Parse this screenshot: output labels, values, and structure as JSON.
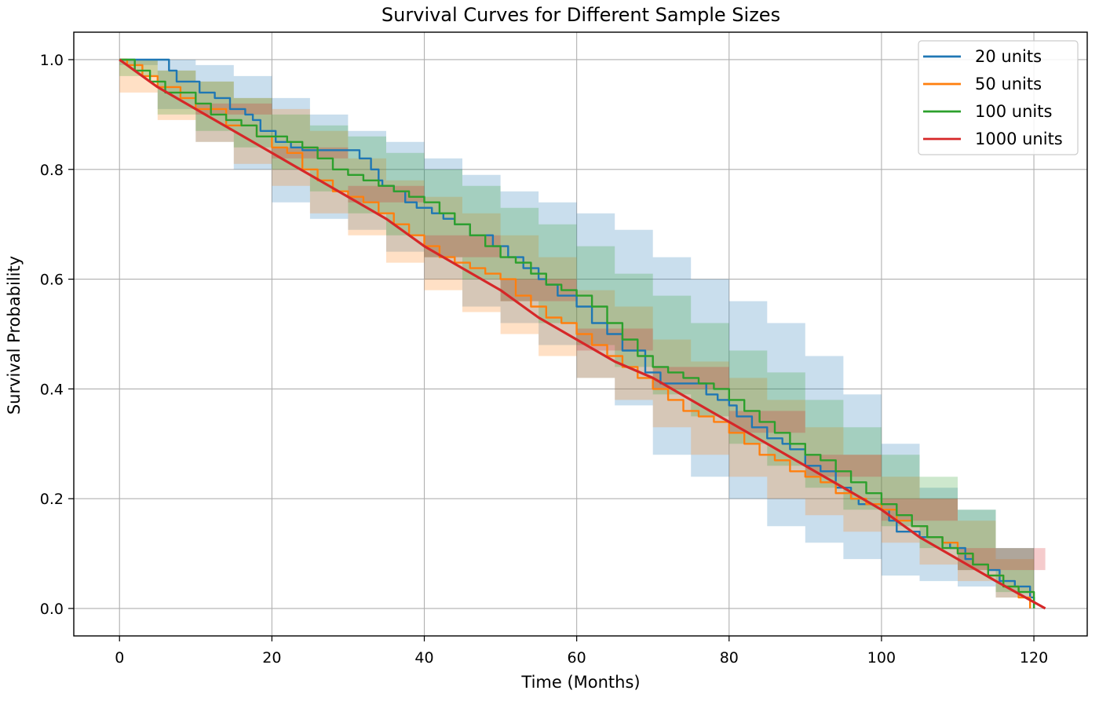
{
  "chart_data": {
    "type": "line",
    "title": "Survival Curves for Different Sample Sizes",
    "xlabel": "Time (Months)",
    "ylabel": "Survival Probability",
    "xlim": [
      -6,
      127
    ],
    "ylim": [
      -0.05,
      1.05
    ],
    "xticks": [
      0,
      20,
      40,
      60,
      80,
      100,
      120
    ],
    "yticks": [
      0.0,
      0.2,
      0.4,
      0.6,
      0.8,
      1.0
    ],
    "xtick_labels": [
      "0",
      "20",
      "40",
      "60",
      "80",
      "100",
      "120"
    ],
    "ytick_labels": [
      "0.0",
      "0.2",
      "0.4",
      "0.6",
      "0.8",
      "1.0"
    ],
    "grid": true,
    "legend_position": "top-right",
    "series": [
      {
        "name": "20 units",
        "color": "#1f77b4",
        "step": true,
        "x": [
          0,
          6.5,
          7.5,
          8.5,
          10.5,
          12.5,
          14.5,
          16.5,
          17.5,
          18.5,
          20.5,
          22.5,
          24,
          31.5,
          33,
          34,
          34.5,
          36,
          37.5,
          39,
          41,
          42.5,
          44,
          46,
          49,
          51,
          53,
          55,
          56,
          57.5,
          60,
          62,
          64,
          66,
          69,
          71,
          75,
          77,
          78.5,
          80,
          81,
          83,
          85,
          87,
          88,
          90,
          92,
          94,
          96,
          97,
          100,
          101,
          102,
          105,
          108,
          109,
          111,
          112,
          114,
          115.5,
          117.5,
          119.5,
          120
        ],
        "y": [
          1.0,
          0.98,
          0.96,
          0.96,
          0.94,
          0.93,
          0.91,
          0.9,
          0.89,
          0.87,
          0.85,
          0.84,
          0.835,
          0.82,
          0.8,
          0.78,
          0.77,
          0.76,
          0.74,
          0.73,
          0.72,
          0.71,
          0.7,
          0.68,
          0.66,
          0.64,
          0.62,
          0.6,
          0.59,
          0.57,
          0.55,
          0.52,
          0.5,
          0.47,
          0.43,
          0.41,
          0.41,
          0.39,
          0.38,
          0.37,
          0.35,
          0.33,
          0.31,
          0.3,
          0.29,
          0.26,
          0.25,
          0.22,
          0.2,
          0.19,
          0.18,
          0.16,
          0.14,
          0.13,
          0.12,
          0.11,
          0.09,
          0.08,
          0.07,
          0.05,
          0.04,
          0.02,
          0.0
        ]
      },
      {
        "name": "50 units",
        "color": "#ff7f0e",
        "step": true,
        "x": [
          0,
          1,
          3,
          5,
          8,
          10,
          14,
          18,
          20,
          22,
          24,
          26,
          28,
          30,
          32,
          34,
          36,
          38,
          40,
          42,
          44,
          46,
          48,
          50,
          52,
          54,
          56,
          58,
          60,
          62,
          64,
          66,
          68,
          70,
          72,
          74,
          76,
          78,
          80,
          82,
          84,
          86,
          88,
          90,
          92,
          94,
          96,
          98,
          100,
          102,
          104,
          106,
          108,
          110,
          112,
          114,
          116,
          118,
          119.5
        ],
        "y": [
          1.0,
          0.99,
          0.97,
          0.95,
          0.93,
          0.91,
          0.88,
          0.86,
          0.84,
          0.83,
          0.8,
          0.78,
          0.76,
          0.75,
          0.74,
          0.72,
          0.7,
          0.68,
          0.66,
          0.64,
          0.63,
          0.62,
          0.61,
          0.6,
          0.57,
          0.55,
          0.53,
          0.52,
          0.5,
          0.48,
          0.46,
          0.44,
          0.42,
          0.4,
          0.38,
          0.36,
          0.35,
          0.34,
          0.32,
          0.3,
          0.28,
          0.27,
          0.25,
          0.24,
          0.23,
          0.21,
          0.2,
          0.19,
          0.18,
          0.16,
          0.15,
          0.13,
          0.12,
          0.1,
          0.08,
          0.06,
          0.04,
          0.02,
          0.0
        ]
      },
      {
        "name": "100 units",
        "color": "#2ca02c",
        "step": true,
        "x": [
          0,
          2,
          4,
          6,
          8,
          10,
          12,
          14,
          16,
          18,
          20,
          22,
          24,
          26,
          28,
          30,
          32,
          34,
          36,
          38,
          40,
          42,
          44,
          46,
          48,
          50,
          52,
          54,
          56,
          58,
          60,
          62,
          64,
          66,
          68,
          70,
          72,
          74,
          76,
          78,
          80,
          82,
          84,
          86,
          88,
          90,
          92,
          94,
          96,
          98,
          100,
          102,
          104,
          106,
          108,
          110,
          112,
          114,
          116,
          118,
          120
        ],
        "y": [
          1.0,
          0.98,
          0.96,
          0.94,
          0.94,
          0.92,
          0.9,
          0.89,
          0.88,
          0.86,
          0.86,
          0.85,
          0.84,
          0.82,
          0.8,
          0.79,
          0.78,
          0.77,
          0.76,
          0.75,
          0.74,
          0.72,
          0.7,
          0.68,
          0.66,
          0.64,
          0.63,
          0.61,
          0.59,
          0.58,
          0.57,
          0.55,
          0.52,
          0.49,
          0.46,
          0.44,
          0.43,
          0.42,
          0.41,
          0.4,
          0.38,
          0.36,
          0.34,
          0.32,
          0.3,
          0.28,
          0.27,
          0.25,
          0.23,
          0.21,
          0.19,
          0.17,
          0.15,
          0.13,
          0.11,
          0.1,
          0.08,
          0.06,
          0.04,
          0.03,
          0.0
        ]
      },
      {
        "name": "1000 units",
        "color": "#d62728",
        "step": false,
        "x": [
          0,
          5,
          10,
          15,
          20,
          25,
          30,
          35,
          40,
          45,
          50,
          55,
          60,
          65,
          70,
          75,
          80,
          85,
          90,
          95,
          100,
          105,
          110,
          115,
          121.5
        ],
        "y": [
          1.0,
          0.95,
          0.91,
          0.87,
          0.83,
          0.79,
          0.75,
          0.71,
          0.66,
          0.62,
          0.58,
          0.53,
          0.49,
          0.45,
          0.42,
          0.38,
          0.34,
          0.3,
          0.26,
          0.22,
          0.18,
          0.13,
          0.09,
          0.05,
          0.0
        ]
      }
    ],
    "bands": [
      {
        "series": "20 units",
        "fill": "#1f77b4",
        "opacity": 0.24,
        "x": [
          0,
          5,
          10,
          15,
          20,
          25,
          30,
          35,
          40,
          45,
          50,
          55,
          60,
          65,
          70,
          75,
          80,
          85,
          90,
          95,
          100,
          105,
          110,
          115,
          120
        ],
        "upper": [
          1.0,
          1.0,
          0.99,
          0.97,
          0.93,
          0.9,
          0.87,
          0.85,
          0.82,
          0.79,
          0.76,
          0.74,
          0.72,
          0.69,
          0.64,
          0.6,
          0.56,
          0.52,
          0.46,
          0.39,
          0.3,
          0.22,
          0.18,
          0.11,
          0.02
        ],
        "lower": [
          0.99,
          0.91,
          0.85,
          0.8,
          0.74,
          0.71,
          0.69,
          0.65,
          0.6,
          0.55,
          0.52,
          0.48,
          0.42,
          0.37,
          0.28,
          0.24,
          0.2,
          0.15,
          0.12,
          0.09,
          0.06,
          0.05,
          0.04,
          0.02,
          0.0
        ]
      },
      {
        "series": "50 units",
        "fill": "#ff7f0e",
        "opacity": 0.24,
        "x": [
          0,
          5,
          10,
          15,
          20,
          25,
          30,
          35,
          40,
          45,
          50,
          55,
          60,
          65,
          70,
          75,
          80,
          85,
          90,
          95,
          100,
          105,
          110,
          115,
          120
        ],
        "upper": [
          1.0,
          0.98,
          0.96,
          0.93,
          0.91,
          0.87,
          0.82,
          0.78,
          0.75,
          0.72,
          0.68,
          0.64,
          0.58,
          0.55,
          0.49,
          0.45,
          0.42,
          0.38,
          0.33,
          0.28,
          0.24,
          0.2,
          0.16,
          0.09,
          0.02
        ],
        "lower": [
          0.94,
          0.89,
          0.85,
          0.81,
          0.77,
          0.72,
          0.68,
          0.63,
          0.58,
          0.54,
          0.5,
          0.46,
          0.42,
          0.38,
          0.33,
          0.28,
          0.24,
          0.2,
          0.17,
          0.14,
          0.12,
          0.08,
          0.05,
          0.02,
          0.0
        ]
      },
      {
        "series": "100 units",
        "fill": "#2ca02c",
        "opacity": 0.24,
        "x": [
          0,
          5,
          10,
          15,
          20,
          25,
          30,
          35,
          40,
          45,
          50,
          55,
          60,
          65,
          70,
          75,
          80,
          85,
          90,
          95,
          100,
          105,
          110,
          115,
          120
        ],
        "upper": [
          1.0,
          0.98,
          0.96,
          0.93,
          0.9,
          0.88,
          0.86,
          0.83,
          0.8,
          0.77,
          0.73,
          0.7,
          0.66,
          0.61,
          0.57,
          0.52,
          0.47,
          0.43,
          0.38,
          0.33,
          0.28,
          0.24,
          0.18,
          0.11,
          0.02
        ],
        "lower": [
          0.97,
          0.9,
          0.87,
          0.84,
          0.8,
          0.76,
          0.72,
          0.68,
          0.64,
          0.6,
          0.56,
          0.52,
          0.48,
          0.44,
          0.39,
          0.35,
          0.3,
          0.26,
          0.22,
          0.18,
          0.15,
          0.11,
          0.07,
          0.03,
          0.0
        ]
      },
      {
        "series": "1000 units",
        "fill": "#d62728",
        "opacity": 0.24,
        "x": [
          0,
          10,
          20,
          30,
          40,
          50,
          60,
          70,
          80,
          90,
          100,
          110,
          121.5
        ],
        "upper": [
          1.0,
          0.92,
          0.84,
          0.77,
          0.68,
          0.6,
          0.51,
          0.44,
          0.36,
          0.28,
          0.2,
          0.11,
          0.0
        ],
        "lower": [
          1.0,
          0.9,
          0.82,
          0.74,
          0.64,
          0.56,
          0.47,
          0.4,
          0.32,
          0.24,
          0.16,
          0.07,
          0.0
        ]
      }
    ]
  }
}
